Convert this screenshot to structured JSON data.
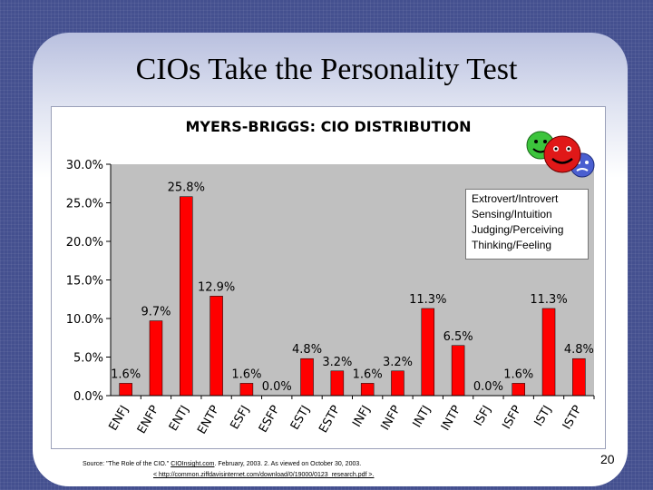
{
  "slide": {
    "title": "CIOs Take the Personality Test",
    "page_number": "20",
    "source_prefix": "Source:  \"The Role of the CIO.\"",
    "source_site": "CIOInsight.com",
    "source_suffix": ". February, 2003. 2. As viewed on October 30, 2003.",
    "source_url": "< http://common.ziffdavisinternet.com/download/0/19000/0123_research.pdf >."
  },
  "legend": {
    "lines": [
      "Extrovert/Introvert",
      "Sensing/Intuition",
      "Judging/Perceiving",
      "Thinking/Feeling"
    ]
  },
  "colors": {
    "bar": "#ff0000",
    "plot_bg": "#c0c0c0",
    "background": "#44508f"
  },
  "icons": {
    "decoration": "smiley-faces-icon"
  },
  "chart_data": {
    "type": "bar",
    "title": "MYERS-BRIGGS: CIO DISTRIBUTION",
    "xlabel": "",
    "ylabel": "",
    "categories": [
      "ENFJ",
      "ENFP",
      "ENTJ",
      "ENTP",
      "ESFJ",
      "ESFP",
      "ESTJ",
      "ESTP",
      "INFJ",
      "INFP",
      "INTJ",
      "INTP",
      "ISFJ",
      "ISFP",
      "ISTJ",
      "ISTP"
    ],
    "values": [
      1.6,
      9.7,
      25.8,
      12.9,
      1.6,
      0.0,
      4.8,
      3.2,
      1.6,
      3.2,
      11.3,
      6.5,
      0.0,
      1.6,
      11.3,
      4.8
    ],
    "data_labels": [
      "1.6%",
      "9.7%",
      "25.8%",
      "12.9%",
      "1.6%",
      "0.0%",
      "4.8%",
      "3.2%",
      "1.6%",
      "3.2%",
      "11.3%",
      "6.5%",
      "0.0%",
      "1.6%",
      "11.3%",
      "4.8%"
    ],
    "ylim": [
      0,
      30
    ],
    "yticks": [
      0,
      5,
      10,
      15,
      20,
      25,
      30
    ],
    "ytick_labels": [
      "0.0%",
      "5.0%",
      "10.0%",
      "15.0%",
      "20.0%",
      "25.0%",
      "30.0%"
    ],
    "grid": false,
    "legend": "none"
  }
}
